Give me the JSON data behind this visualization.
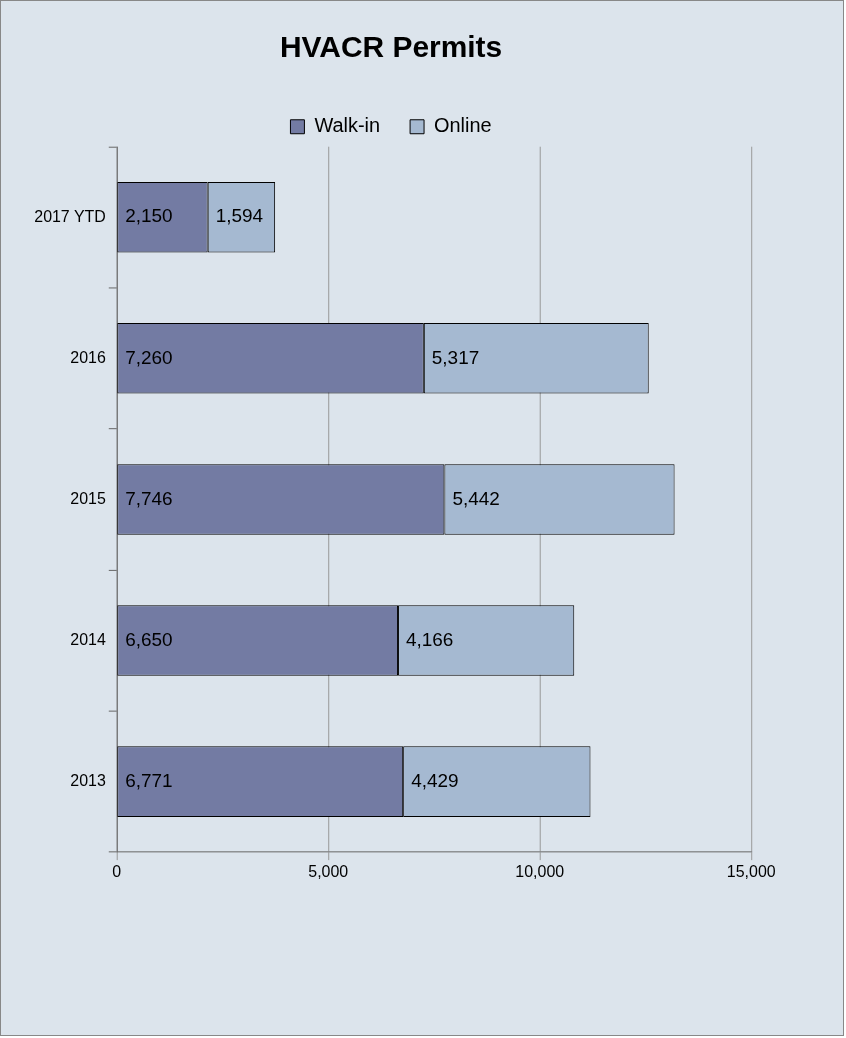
{
  "chart_data": {
    "type": "bar",
    "orientation": "horizontal",
    "stacked": true,
    "title": "HVACR Permits",
    "categories": [
      "2017 YTD",
      "2016",
      "2015",
      "2014",
      "2013"
    ],
    "series": [
      {
        "name": "Walk-in",
        "color": "#737ba3",
        "values": [
          2150,
          7260,
          7746,
          6650,
          6771
        ],
        "value_labels": [
          "2,150",
          "7,260",
          "7,746",
          "6,650",
          "6,771"
        ]
      },
      {
        "name": "Online",
        "color": "#a5b9d1",
        "values": [
          1594,
          5317,
          5442,
          4166,
          4429
        ],
        "value_labels": [
          "1,594",
          "5,317",
          "5,442",
          "4,166",
          "4,429"
        ]
      }
    ],
    "xlim": [
      0,
      15000
    ],
    "xticks": [
      0,
      {
        "value": 5000,
        "label": "5,000"
      },
      {
        "value": 10000,
        "label": "10,000"
      },
      {
        "value": 15000,
        "label": "15,000"
      }
    ],
    "grid": "x",
    "legend": "top"
  }
}
